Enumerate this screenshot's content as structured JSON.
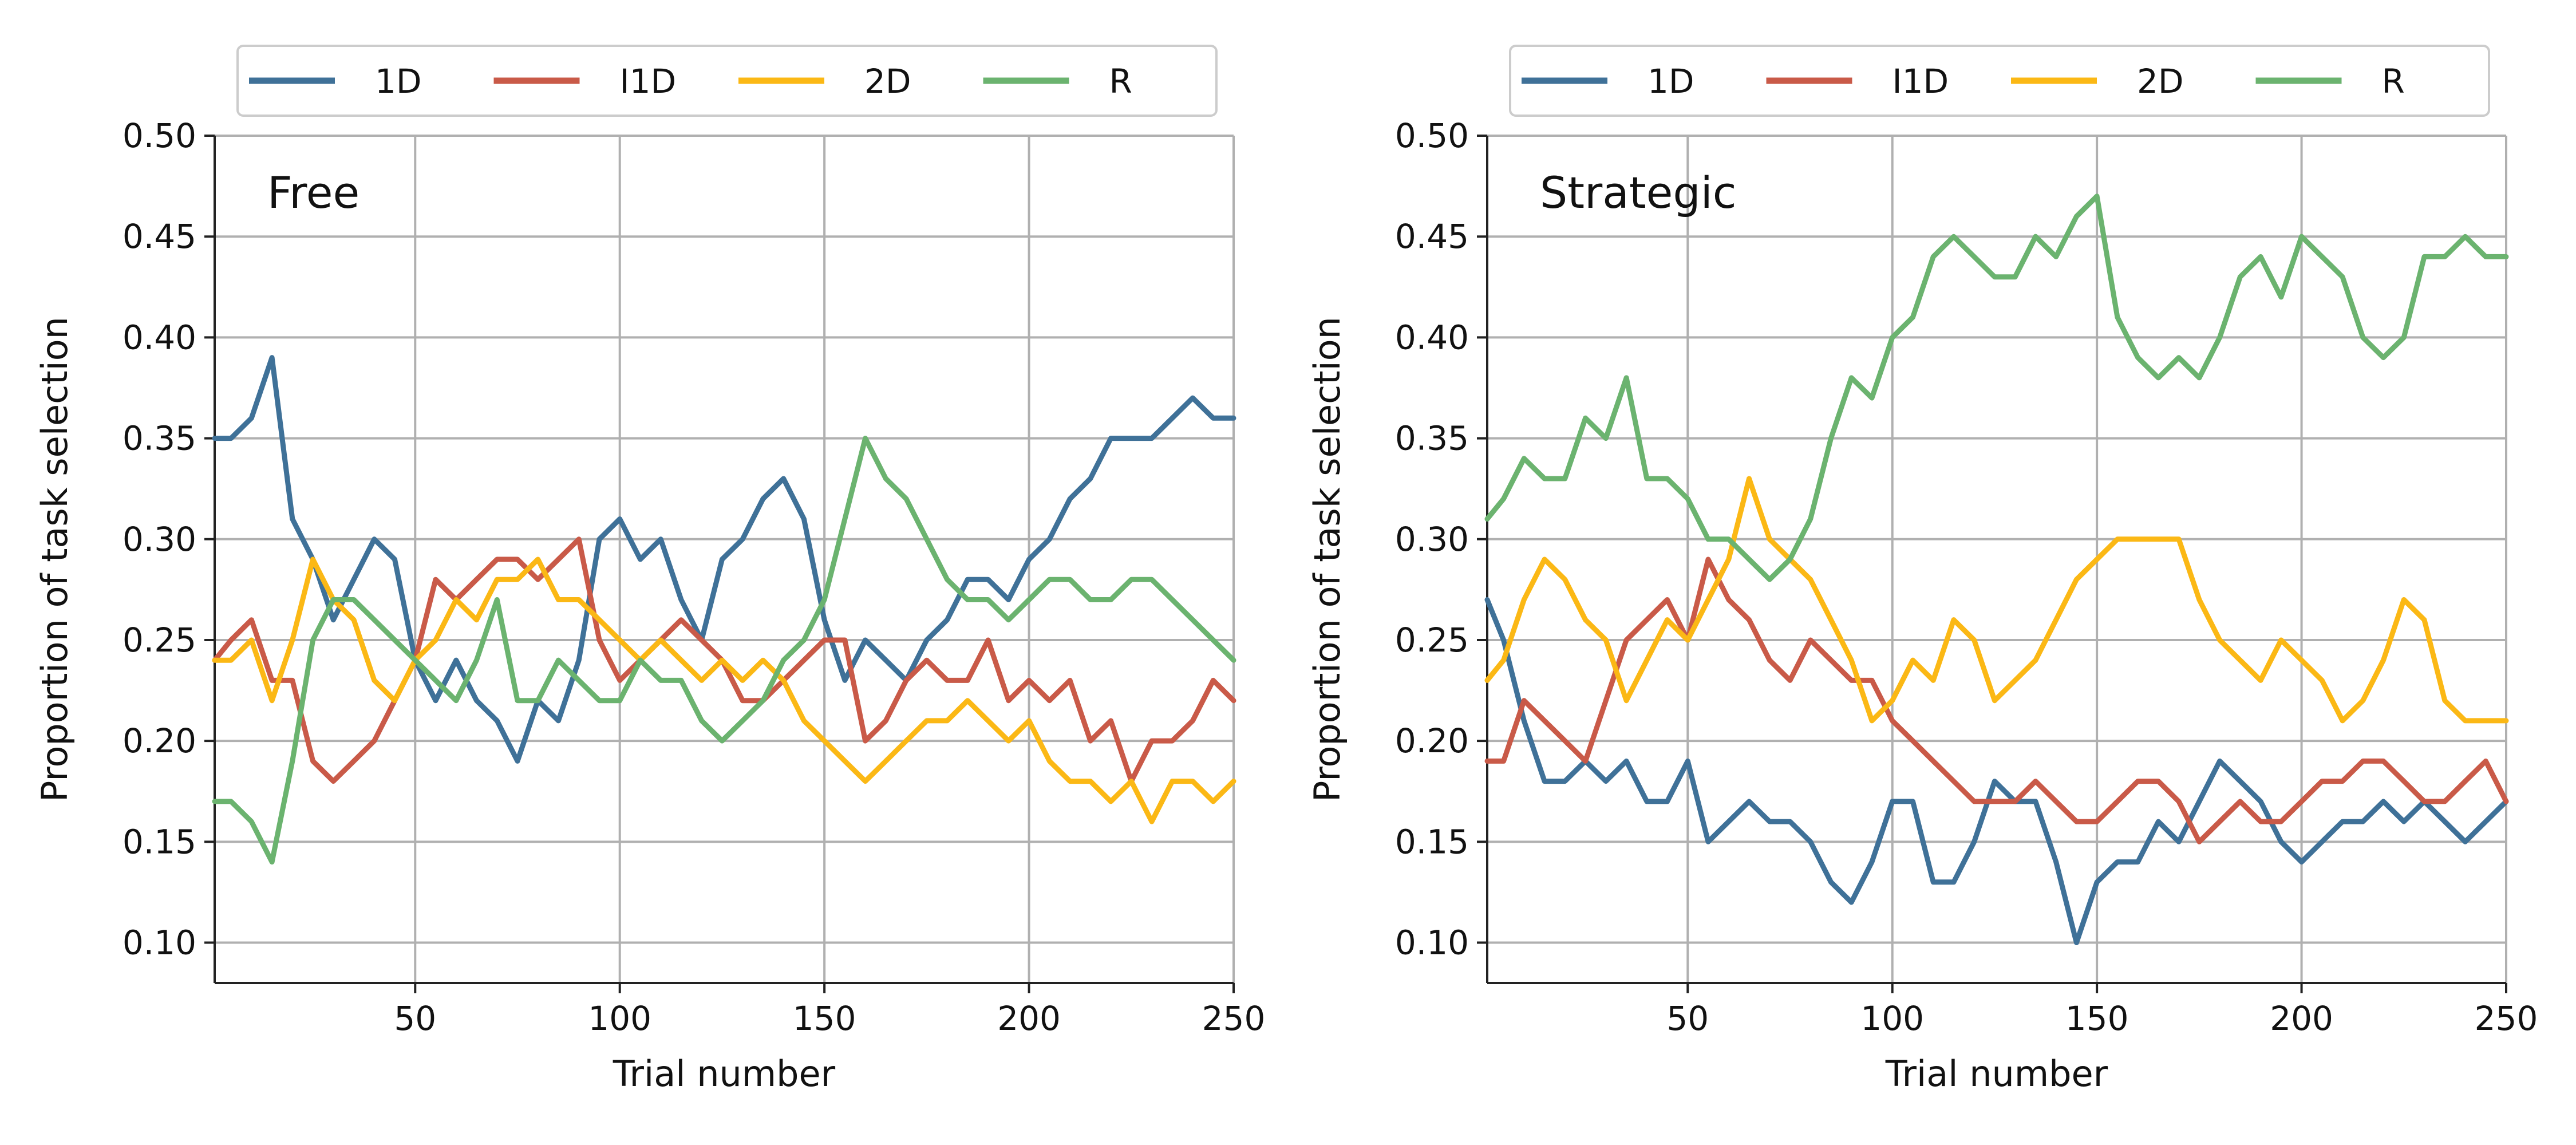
{
  "chart_data": [
    {
      "type": "line",
      "title": "Free",
      "xlabel": "Trial number",
      "ylabel": "Proportion of task selection",
      "xlim": [
        1,
        250
      ],
      "ylim": [
        0.08,
        0.5
      ],
      "xticks": [
        50,
        100,
        150,
        200,
        250
      ],
      "yticks": [
        0.1,
        0.15,
        0.2,
        0.25,
        0.3,
        0.35,
        0.4,
        0.45,
        0.5
      ],
      "grid": true,
      "legend_position": "top, above plot",
      "x": [
        1,
        5,
        10,
        15,
        20,
        25,
        30,
        35,
        40,
        45,
        50,
        55,
        60,
        65,
        70,
        75,
        80,
        85,
        90,
        95,
        100,
        105,
        110,
        115,
        120,
        125,
        130,
        135,
        140,
        145,
        150,
        155,
        160,
        165,
        170,
        175,
        180,
        185,
        190,
        195,
        200,
        205,
        210,
        215,
        220,
        225,
        230,
        235,
        240,
        245,
        250
      ],
      "series": [
        {
          "name": "1D",
          "color": "#3f7198",
          "values": [
            0.35,
            0.35,
            0.36,
            0.39,
            0.31,
            0.29,
            0.26,
            0.28,
            0.3,
            0.29,
            0.24,
            0.22,
            0.24,
            0.22,
            0.21,
            0.19,
            0.22,
            0.21,
            0.24,
            0.3,
            0.31,
            0.29,
            0.3,
            0.27,
            0.25,
            0.29,
            0.3,
            0.32,
            0.33,
            0.31,
            0.26,
            0.23,
            0.25,
            0.24,
            0.23,
            0.25,
            0.26,
            0.28,
            0.28,
            0.27,
            0.29,
            0.3,
            0.32,
            0.33,
            0.35,
            0.35,
            0.35,
            0.36,
            0.37,
            0.36,
            0.36
          ]
        },
        {
          "name": "I1D",
          "color": "#c95a48",
          "values": [
            0.24,
            0.25,
            0.26,
            0.23,
            0.23,
            0.19,
            0.18,
            0.19,
            0.2,
            0.22,
            0.24,
            0.28,
            0.27,
            0.28,
            0.29,
            0.29,
            0.28,
            0.29,
            0.3,
            0.25,
            0.23,
            0.24,
            0.25,
            0.26,
            0.25,
            0.24,
            0.22,
            0.22,
            0.23,
            0.24,
            0.25,
            0.25,
            0.2,
            0.21,
            0.23,
            0.24,
            0.23,
            0.23,
            0.25,
            0.22,
            0.23,
            0.22,
            0.23,
            0.2,
            0.21,
            0.18,
            0.2,
            0.2,
            0.21,
            0.23,
            0.22
          ]
        },
        {
          "name": "2D",
          "color": "#fbb815",
          "values": [
            0.24,
            0.24,
            0.25,
            0.22,
            0.25,
            0.29,
            0.27,
            0.26,
            0.23,
            0.22,
            0.24,
            0.25,
            0.27,
            0.26,
            0.28,
            0.28,
            0.29,
            0.27,
            0.27,
            0.26,
            0.25,
            0.24,
            0.25,
            0.24,
            0.23,
            0.24,
            0.23,
            0.24,
            0.23,
            0.21,
            0.2,
            0.19,
            0.18,
            0.19,
            0.2,
            0.21,
            0.21,
            0.22,
            0.21,
            0.2,
            0.21,
            0.19,
            0.18,
            0.18,
            0.17,
            0.18,
            0.16,
            0.18,
            0.18,
            0.17,
            0.18
          ]
        },
        {
          "name": "R",
          "color": "#6bb36f",
          "values": [
            0.17,
            0.17,
            0.16,
            0.14,
            0.19,
            0.25,
            0.27,
            0.27,
            0.26,
            0.25,
            0.24,
            0.23,
            0.22,
            0.24,
            0.27,
            0.22,
            0.22,
            0.24,
            0.23,
            0.22,
            0.22,
            0.24,
            0.23,
            0.23,
            0.21,
            0.2,
            0.21,
            0.22,
            0.24,
            0.25,
            0.27,
            0.31,
            0.35,
            0.33,
            0.32,
            0.3,
            0.28,
            0.27,
            0.27,
            0.26,
            0.27,
            0.28,
            0.28,
            0.27,
            0.27,
            0.28,
            0.28,
            0.27,
            0.26,
            0.25,
            0.24
          ]
        }
      ]
    },
    {
      "type": "line",
      "title": "Strategic",
      "xlabel": "Trial number",
      "ylabel": "Proportion of task selection",
      "xlim": [
        1,
        250
      ],
      "ylim": [
        0.08,
        0.5
      ],
      "xticks": [
        50,
        100,
        150,
        200,
        250
      ],
      "yticks": [
        0.1,
        0.15,
        0.2,
        0.25,
        0.3,
        0.35,
        0.4,
        0.45,
        0.5
      ],
      "grid": true,
      "legend_position": "top, above plot",
      "x": [
        1,
        5,
        10,
        15,
        20,
        25,
        30,
        35,
        40,
        45,
        50,
        55,
        60,
        65,
        70,
        75,
        80,
        85,
        90,
        95,
        100,
        105,
        110,
        115,
        120,
        125,
        130,
        135,
        140,
        145,
        150,
        155,
        160,
        165,
        170,
        175,
        180,
        185,
        190,
        195,
        200,
        205,
        210,
        215,
        220,
        225,
        230,
        235,
        240,
        245,
        250
      ],
      "series": [
        {
          "name": "1D",
          "color": "#3f7198",
          "values": [
            0.27,
            0.25,
            0.21,
            0.18,
            0.18,
            0.19,
            0.18,
            0.19,
            0.17,
            0.17,
            0.19,
            0.15,
            0.16,
            0.17,
            0.16,
            0.16,
            0.15,
            0.13,
            0.12,
            0.14,
            0.17,
            0.17,
            0.13,
            0.13,
            0.15,
            0.18,
            0.17,
            0.17,
            0.14,
            0.1,
            0.13,
            0.14,
            0.14,
            0.16,
            0.15,
            0.17,
            0.19,
            0.18,
            0.17,
            0.15,
            0.14,
            0.15,
            0.16,
            0.16,
            0.17,
            0.16,
            0.17,
            0.16,
            0.15,
            0.16,
            0.17
          ]
        },
        {
          "name": "I1D",
          "color": "#c95a48",
          "values": [
            0.19,
            0.19,
            0.22,
            0.21,
            0.2,
            0.19,
            0.22,
            0.25,
            0.26,
            0.27,
            0.25,
            0.29,
            0.27,
            0.26,
            0.24,
            0.23,
            0.25,
            0.24,
            0.23,
            0.23,
            0.21,
            0.2,
            0.19,
            0.18,
            0.17,
            0.17,
            0.17,
            0.18,
            0.17,
            0.16,
            0.16,
            0.17,
            0.18,
            0.18,
            0.17,
            0.15,
            0.16,
            0.17,
            0.16,
            0.16,
            0.17,
            0.18,
            0.18,
            0.19,
            0.19,
            0.18,
            0.17,
            0.17,
            0.18,
            0.19,
            0.17
          ]
        },
        {
          "name": "2D",
          "color": "#fbb815",
          "values": [
            0.23,
            0.24,
            0.27,
            0.29,
            0.28,
            0.26,
            0.25,
            0.22,
            0.24,
            0.26,
            0.25,
            0.27,
            0.29,
            0.33,
            0.3,
            0.29,
            0.28,
            0.26,
            0.24,
            0.21,
            0.22,
            0.24,
            0.23,
            0.26,
            0.25,
            0.22,
            0.23,
            0.24,
            0.26,
            0.28,
            0.29,
            0.3,
            0.3,
            0.3,
            0.3,
            0.27,
            0.25,
            0.24,
            0.23,
            0.25,
            0.24,
            0.23,
            0.21,
            0.22,
            0.24,
            0.27,
            0.26,
            0.22,
            0.21,
            0.21,
            0.21
          ]
        },
        {
          "name": "R",
          "color": "#6bb36f",
          "values": [
            0.31,
            0.32,
            0.34,
            0.33,
            0.33,
            0.36,
            0.35,
            0.38,
            0.33,
            0.33,
            0.32,
            0.3,
            0.3,
            0.29,
            0.28,
            0.29,
            0.31,
            0.35,
            0.38,
            0.37,
            0.4,
            0.41,
            0.44,
            0.45,
            0.44,
            0.43,
            0.43,
            0.45,
            0.44,
            0.46,
            0.47,
            0.41,
            0.39,
            0.38,
            0.39,
            0.38,
            0.4,
            0.43,
            0.44,
            0.42,
            0.45,
            0.44,
            0.43,
            0.4,
            0.39,
            0.4,
            0.44,
            0.44,
            0.45,
            0.44,
            0.44
          ]
        }
      ]
    }
  ]
}
